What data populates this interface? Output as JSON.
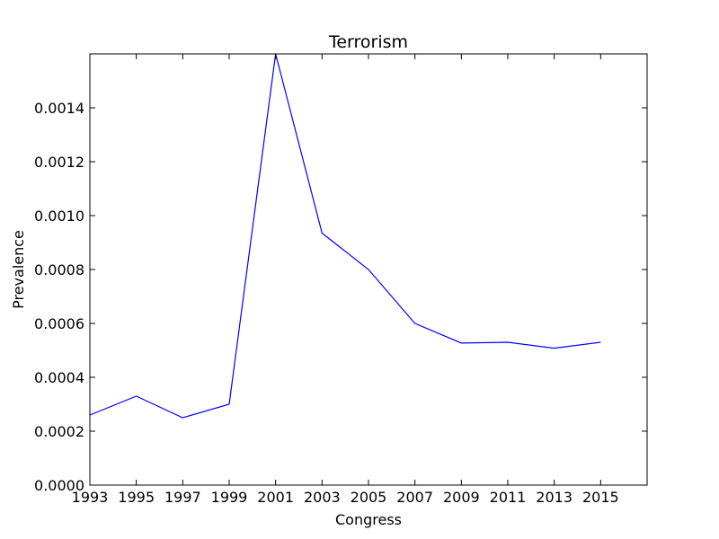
{
  "chart_data": {
    "type": "line",
    "title": "Terrorism",
    "xlabel": "Congress",
    "ylabel": "Prevalence",
    "xlim": [
      1993,
      2017
    ],
    "ylim": [
      0,
      0.0016
    ],
    "xticks": [
      1993,
      1995,
      1997,
      1999,
      2001,
      2003,
      2005,
      2007,
      2009,
      2011,
      2013,
      2015
    ],
    "xtick_labels": [
      "1993",
      "1995",
      "1997",
      "1999",
      "2001",
      "2003",
      "2005",
      "2007",
      "2009",
      "2011",
      "2013",
      "2015"
    ],
    "yticks": [
      0,
      0.0002,
      0.0004,
      0.0006,
      0.0008,
      0.001,
      0.0012,
      0.0014
    ],
    "ytick_labels": [
      "0.0000",
      "0.0002",
      "0.0004",
      "0.0006",
      "0.0008",
      "0.0010",
      "0.0012",
      "0.0014"
    ],
    "grid": false,
    "series": [
      {
        "color": "#0000ff",
        "x": [
          1993,
          1995,
          1997,
          1999,
          2001,
          2003,
          2005,
          2007,
          2009,
          2011,
          2013,
          2015
        ],
        "y": [
          0.00026,
          0.00033,
          0.00025,
          0.0003,
          0.0016,
          0.000935,
          0.0008,
          0.0006,
          0.000527,
          0.00053,
          0.000508,
          0.00053
        ]
      }
    ]
  }
}
